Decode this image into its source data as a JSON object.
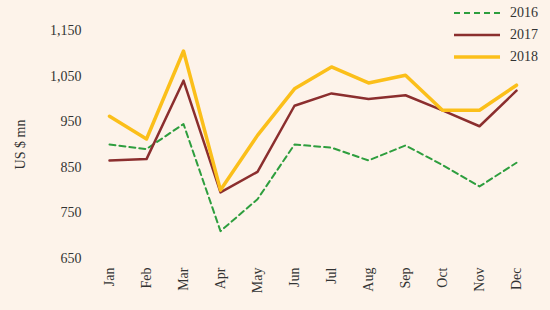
{
  "chart_data": {
    "type": "line",
    "y_label": "US $ mn",
    "categories": [
      "Jan",
      "Feb",
      "Mar",
      "Apr",
      "May",
      "Jun",
      "Jul",
      "Aug",
      "Sep",
      "Oct",
      "Nov",
      "Dec"
    ],
    "series": [
      {
        "name": "2016",
        "color": "#2e9e3e",
        "line_style": "dashed",
        "values": [
          900,
          890,
          945,
          710,
          780,
          900,
          893,
          865,
          898,
          855,
          808,
          860
        ]
      },
      {
        "name": "2017",
        "color": "#8b2e2e",
        "line_style": "solid",
        "values": [
          865,
          868,
          1040,
          795,
          840,
          985,
          1012,
          1000,
          1008,
          975,
          940,
          1018
        ]
      },
      {
        "name": "2018",
        "color": "#fbbf1a",
        "line_style": "solid",
        "values": [
          962,
          912,
          1105,
          800,
          920,
          1022,
          1070,
          1035,
          1052,
          975,
          975,
          1030
        ]
      }
    ],
    "ylim": [
      650,
      1150
    ],
    "yticks": [
      650,
      750,
      850,
      950,
      {
        "value": 1050,
        "label": "1,050"
      },
      {
        "value": 1150,
        "label": "1,150"
      }
    ],
    "grid": false,
    "legend": "top-right"
  }
}
